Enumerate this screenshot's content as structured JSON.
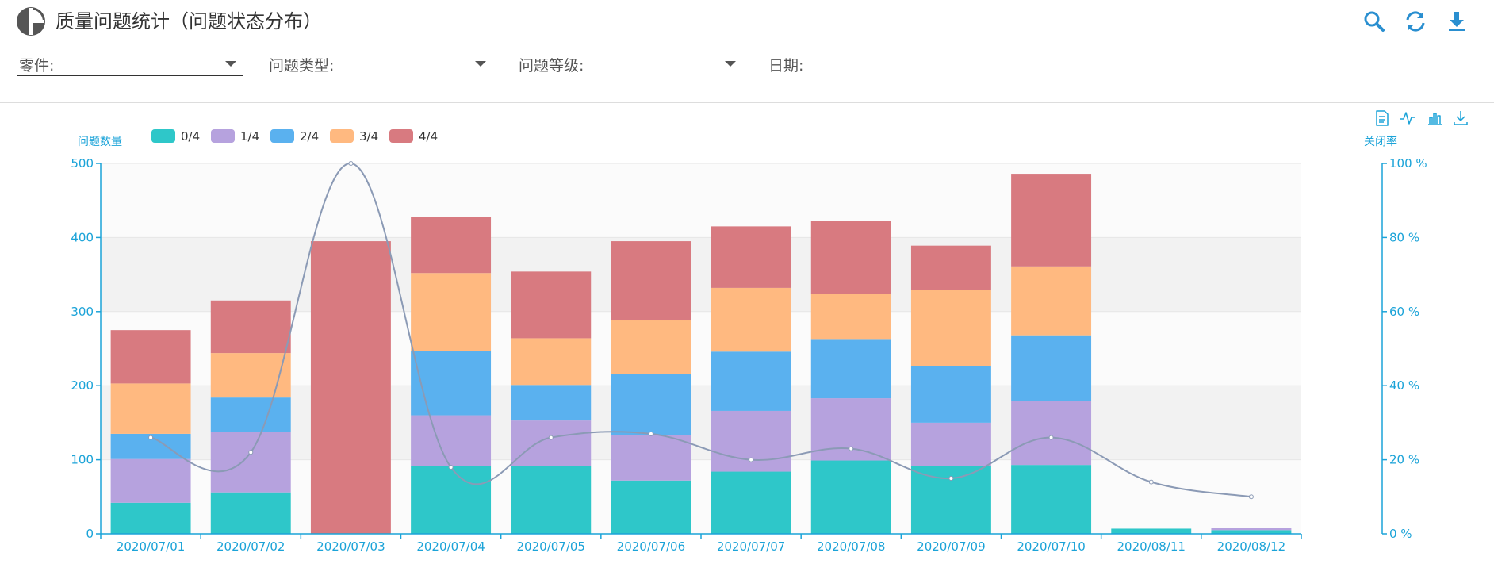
{
  "header": {
    "title": "质量问题统计（问题状态分布）",
    "logo_icon": "pie-chart-logo-icon",
    "tools": [
      {
        "name": "search-icon"
      },
      {
        "name": "refresh-icon"
      },
      {
        "name": "download-icon"
      }
    ]
  },
  "filters": [
    {
      "label": "零件:",
      "has_dropdown": true
    },
    {
      "label": "问题类型:",
      "has_dropdown": true
    },
    {
      "label": "问题等级:",
      "has_dropdown": true
    },
    {
      "label": "日期:",
      "has_dropdown": false
    }
  ],
  "toolbox": [
    "data-view-icon",
    "line-chart-icon",
    "bar-chart-icon",
    "save-image-icon"
  ],
  "colors": {
    "accent": "#2a8fd0",
    "axis": "#1ba3d8",
    "line": "#8b9ab5"
  },
  "chart_data": {
    "type": "bar",
    "stacked": true,
    "categories": [
      "2020/07/01",
      "2020/07/02",
      "2020/07/03",
      "2020/07/04",
      "2020/07/05",
      "2020/07/06",
      "2020/07/07",
      "2020/07/08",
      "2020/07/09",
      "2020/07/10",
      "2020/08/11",
      "2020/08/12"
    ],
    "y_left": {
      "label": "问题数量",
      "min": 0,
      "max": 500,
      "ticks": [
        "0",
        "100",
        "200",
        "300",
        "400",
        "500"
      ]
    },
    "y_right": {
      "label": "关闭率",
      "min": 0,
      "max": 100,
      "ticks": [
        "0 %",
        "20 %",
        "40 %",
        "60 %",
        "80 %",
        "100 %"
      ]
    },
    "series": [
      {
        "name": "0/4",
        "color": "#2ec7c9",
        "values": [
          42,
          56,
          0,
          91,
          91,
          72,
          84,
          99,
          92,
          93,
          7,
          5
        ]
      },
      {
        "name": "1/4",
        "color": "#b6a2de",
        "values": [
          59,
          82,
          0,
          69,
          62,
          61,
          82,
          84,
          58,
          86,
          0,
          3
        ]
      },
      {
        "name": "2/4",
        "color": "#5ab1ef",
        "values": [
          34,
          46,
          0,
          87,
          48,
          83,
          80,
          80,
          76,
          89,
          0,
          0
        ]
      },
      {
        "name": "3/4",
        "color": "#ffb980",
        "values": [
          68,
          60,
          0,
          105,
          63,
          72,
          86,
          61,
          103,
          93,
          0,
          0
        ]
      },
      {
        "name": "4/4",
        "color": "#d87a80",
        "values": [
          72,
          71,
          395,
          76,
          90,
          107,
          83,
          98,
          60,
          125,
          0,
          0
        ]
      }
    ],
    "line": {
      "name": "关闭率",
      "axis": "right",
      "values": [
        26,
        22,
        100,
        18,
        26,
        27,
        20,
        23,
        15,
        26,
        14,
        10
      ]
    },
    "legend_position": "top-left",
    "grid": true
  }
}
